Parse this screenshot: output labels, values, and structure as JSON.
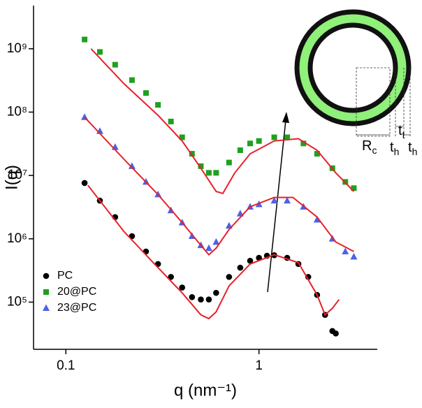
{
  "chart_data": {
    "type": "scatter",
    "xlabel": "q (nm⁻¹)",
    "ylabel": "I(q)",
    "xscale": "log",
    "yscale": "log",
    "xlim": [
      0.068,
      4.1
    ],
    "ylim": [
      18000,
      4800000000
    ],
    "xticks": [
      0.1,
      1
    ],
    "yticks": [
      {
        "value": 100000,
        "label": "10⁵"
      },
      {
        "value": 1000000,
        "label": "10⁶"
      },
      {
        "value": 10000000,
        "label": "10⁷"
      },
      {
        "value": 100000000,
        "label": "10⁸"
      },
      {
        "value": 1000000000,
        "label": "10⁹"
      }
    ],
    "legend": "lower left",
    "series": [
      {
        "name": "PC",
        "color": "#000000",
        "marker": "circle",
        "x": [
          0.125,
          0.15,
          0.18,
          0.22,
          0.26,
          0.3,
          0.35,
          0.4,
          0.45,
          0.5,
          0.55,
          0.6,
          0.7,
          0.8,
          0.9,
          1.0,
          1.1,
          1.2,
          1.4,
          1.6,
          1.8,
          2.0,
          2.2,
          2.4,
          2.5
        ],
        "values": [
          7600000,
          4000000,
          2200000,
          1100000,
          630000,
          400000,
          250000,
          170000,
          120000,
          110000,
          110000,
          140000,
          250000,
          350000,
          450000,
          500000,
          540000,
          550000,
          500000,
          400000,
          250000,
          130000,
          63000,
          35000,
          32000
        ]
      },
      {
        "name": "20@PC",
        "color": "#1fa01f",
        "marker": "square",
        "x": [
          0.125,
          0.15,
          0.18,
          0.22,
          0.26,
          0.3,
          0.35,
          0.4,
          0.45,
          0.5,
          0.55,
          0.6,
          0.7,
          0.8,
          0.9,
          1.0,
          1.2,
          1.4,
          1.7,
          2.0,
          2.4,
          2.8,
          3.1
        ],
        "values": [
          1400000000,
          890000000,
          560000000,
          320000000,
          200000000,
          130000000,
          71000000,
          40000000,
          22000000,
          14000000,
          11000000,
          11000000,
          16000000,
          25000000,
          32000000,
          35000000,
          40000000,
          40000000,
          32000000,
          22000000,
          13000000,
          7900000,
          6300000
        ]
      },
      {
        "name": "23@PC",
        "color": "#4a63e6",
        "marker": "triangle",
        "x": [
          0.125,
          0.15,
          0.18,
          0.22,
          0.26,
          0.3,
          0.35,
          0.4,
          0.45,
          0.5,
          0.55,
          0.6,
          0.7,
          0.8,
          0.9,
          1.0,
          1.2,
          1.4,
          1.7,
          2.0,
          2.4,
          2.8,
          3.1
        ],
        "values": [
          83000000,
          50000000,
          28000000,
          14000000,
          7900000,
          5000000,
          2800000,
          1800000,
          1100000,
          790000,
          710000,
          890000,
          1600000,
          2500000,
          3200000,
          3500000,
          4000000,
          4000000,
          3200000,
          2000000,
          1000000,
          630000,
          520000
        ]
      },
      {
        "color": "#e8202a",
        "marker": "line",
        "x": [
          0.13,
          0.2,
          0.3,
          0.4,
          0.5,
          0.55,
          0.6,
          0.7,
          0.9,
          1.2,
          1.6,
          2.0,
          2.2,
          2.4,
          2.6
        ],
        "values": [
          7000000,
          1300000,
          350000,
          140000,
          63000,
          55000,
          70000,
          180000,
          400000,
          560000,
          420000,
          130000,
          63000,
          80000,
          110000
        ]
      },
      {
        "color": "#e8202a",
        "marker": "line",
        "x": [
          0.135,
          0.2,
          0.3,
          0.4,
          0.5,
          0.6,
          0.65,
          0.75,
          0.9,
          1.2,
          1.6,
          2.0,
          2.5,
          3.1
        ],
        "values": [
          1000000000,
          280000000,
          89000000,
          35000000,
          13000000,
          5600000,
          5200000,
          11000000,
          22000000,
          35000000,
          38000000,
          25000000,
          11000000,
          5600000
        ]
      },
      {
        "color": "#e8202a",
        "marker": "line",
        "x": [
          0.125,
          0.2,
          0.3,
          0.4,
          0.5,
          0.55,
          0.6,
          0.7,
          0.9,
          1.2,
          1.5,
          2.0,
          2.5,
          3.1
        ],
        "values": [
          83000000,
          18000000,
          5000000,
          1800000,
          790000,
          560000,
          710000,
          1400000,
          3200000,
          4500000,
          4500000,
          2200000,
          890000,
          630000
        ]
      }
    ],
    "annotations": [
      {
        "text": "R",
        "sub": "c"
      },
      {
        "text": "t",
        "sub": "h"
      },
      {
        "text": "t",
        "sub": "t"
      },
      {
        "text": "t",
        "sub": "h"
      }
    ]
  }
}
